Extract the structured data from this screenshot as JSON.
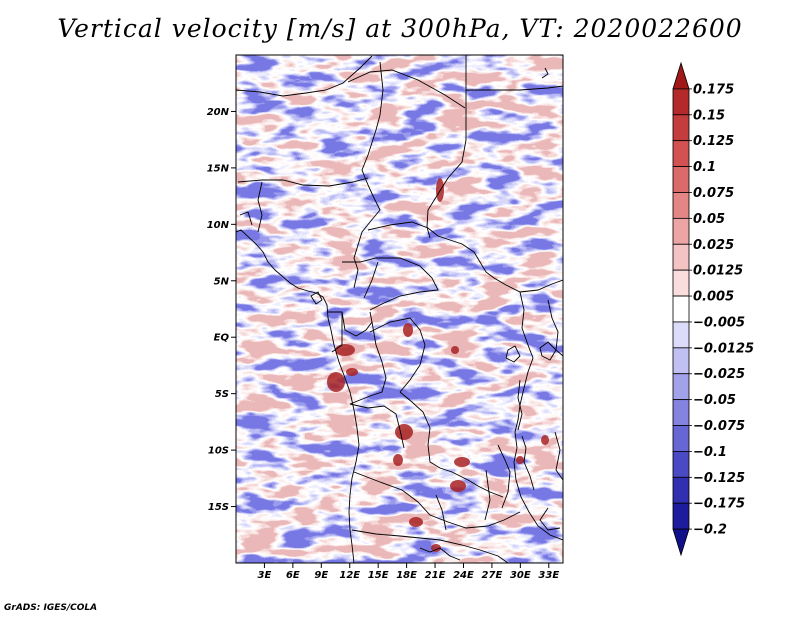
{
  "title": "Vertical velocity [m/s] at 300hPa, VT: 2020022600",
  "credit": "GrADS: IGES/COLA",
  "map": {
    "variable": "Vertical velocity",
    "units": "m/s",
    "level": "300hPa",
    "valid_time": "2020022600",
    "lon_range": [
      0,
      34.5
    ],
    "lat_range": [
      -20,
      25
    ],
    "lat_ticks": [
      {
        "value": 20,
        "label": "20N"
      },
      {
        "value": 15,
        "label": "15N"
      },
      {
        "value": 10,
        "label": "10N"
      },
      {
        "value": 5,
        "label": "5N"
      },
      {
        "value": 0,
        "label": "EQ"
      },
      {
        "value": -5,
        "label": "5S"
      },
      {
        "value": -10,
        "label": "10S"
      },
      {
        "value": -15,
        "label": "15S"
      }
    ],
    "lon_ticks": [
      {
        "value": 3,
        "label": "3E"
      },
      {
        "value": 6,
        "label": "6E"
      },
      {
        "value": 9,
        "label": "9E"
      },
      {
        "value": 12,
        "label": "12E"
      },
      {
        "value": 15,
        "label": "15E"
      },
      {
        "value": 18,
        "label": "18E"
      },
      {
        "value": 21,
        "label": "21E"
      },
      {
        "value": 24,
        "label": "24E"
      },
      {
        "value": 27,
        "label": "27E"
      },
      {
        "value": 30,
        "label": "30E"
      },
      {
        "value": 33,
        "label": "33E"
      }
    ]
  },
  "colorbar": {
    "labels": [
      "0.175",
      "0.15",
      "0.125",
      "0.1",
      "0.075",
      "0.05",
      "0.025",
      "0.0125",
      "0.005",
      "−0.005",
      "−0.0125",
      "−0.025",
      "−0.05",
      "−0.075",
      "−0.1",
      "−0.125",
      "−0.175",
      "−0.2"
    ],
    "colors": [
      "#a01818",
      "#b42a2a",
      "#c43c3c",
      "#d25252",
      "#dc6a6a",
      "#e48686",
      "#eca4a4",
      "#f4c4c4",
      "#fadede",
      "#ffffff",
      "#dcdcfa",
      "#c0c0f2",
      "#a2a2ea",
      "#8484e0",
      "#6666d4",
      "#4a4ac4",
      "#3030b0",
      "#1c1c9c",
      "#10108a"
    ]
  }
}
